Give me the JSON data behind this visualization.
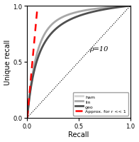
{
  "title": "",
  "xlabel": "Recall",
  "ylabel": "Unique recall",
  "rho_label": "ρ=10",
  "xlim": [
    0,
    1
  ],
  "ylim": [
    0,
    1
  ],
  "legend_entries": [
    "ham",
    "lin",
    "geo",
    "Approx. for r << 1"
  ],
  "legend_colors": [
    "#d4d4d4",
    "#a8a8a8",
    "#505050",
    "#ff0000"
  ],
  "background_color": "#ffffff",
  "rho": 10,
  "approx_xlim": [
    0,
    0.12
  ],
  "figsize": [
    1.96,
    2.01
  ],
  "dpi": 100
}
